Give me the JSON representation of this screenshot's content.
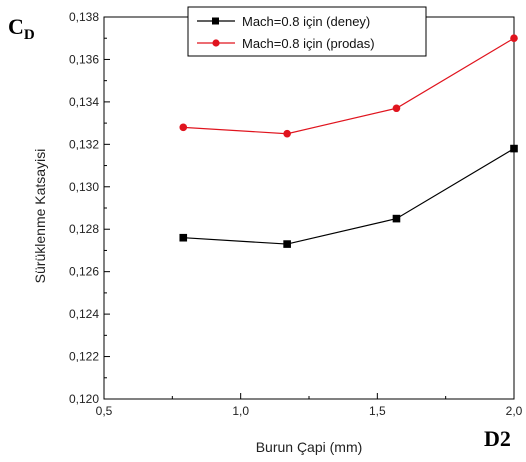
{
  "chart_data": {
    "type": "line",
    "x_ticks": [
      "0,5",
      "1,0",
      "1,5",
      "2,0"
    ],
    "y_ticks": [
      "0,120",
      "0,122",
      "0,124",
      "0,126",
      "0,128",
      "0,130",
      "0,132",
      "0,134",
      "0,136",
      "0,138"
    ],
    "xlabel": "Burun Çapi (mm)",
    "ylabel": "Sürüklenme Katsayisi",
    "corner_label_top": "C",
    "corner_label_top_sub": "D",
    "corner_label_bottom": "D2",
    "xlim": [
      0.5,
      2.0
    ],
    "ylim": [
      0.12,
      0.138
    ],
    "x": [
      0.79,
      1.17,
      1.57,
      2.0
    ],
    "legend_position": "top-right",
    "series": [
      {
        "name": "Mach=0.8 için (deney)",
        "color": "#000000",
        "marker": "square",
        "values": [
          0.1276,
          0.1273,
          0.1285,
          0.1318
        ]
      },
      {
        "name": "Mach=0.8 için (prodas)",
        "color": "#e0141e",
        "marker": "circle",
        "values": [
          0.1328,
          0.1325,
          0.1337,
          0.137
        ]
      }
    ]
  }
}
